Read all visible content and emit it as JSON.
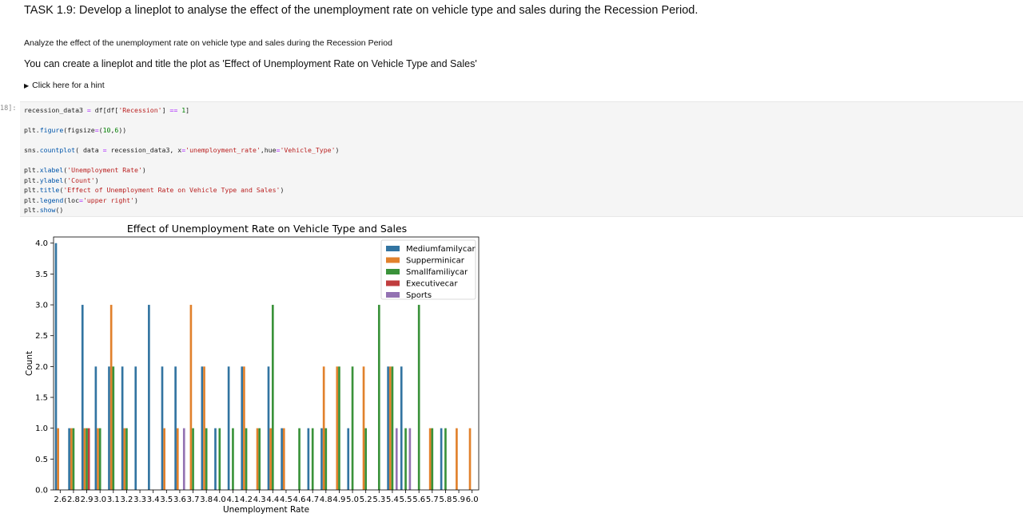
{
  "task_heading": "TASK 1.9: Develop a lineplot to analyse the effect of the unemployment rate on vehicle type and sales during the Recession Period.",
  "description": "Analyze the effect of the unemployment rate on vehicle type and sales during the Recession Period",
  "instruction": "You can create a lineplot and title the plot as 'Effect of Unemployment Rate on Vehicle Type and Sales'",
  "hint_label": "Click here for a hint",
  "prompt_label": "18]:",
  "code_lines": [
    "recession_data3 = df[df['Recession'] == 1]",
    "",
    "plt.figure(figsize=(10,6))",
    "",
    "sns.countplot( data = recession_data3, x='unemployment_rate',hue='Vehicle_Type')",
    "",
    "plt.xlabel('Unemployment Rate')",
    "plt.ylabel('Count')",
    "plt.title('Effect of Unemployment Rate on Vehicle Type and Sales')",
    "plt.legend(loc='upper right')",
    "plt.show()"
  ],
  "chart_data": {
    "type": "bar",
    "title": "Effect of Unemployment Rate on Vehicle Type and Sales",
    "xlabel": "Unemployment Rate",
    "ylabel": "Count",
    "ylim": [
      0,
      4.1
    ],
    "yticks": [
      "0.0",
      "0.5",
      "1.0",
      "1.5",
      "2.0",
      "2.5",
      "3.0",
      "3.5",
      "4.0"
    ],
    "legend_position": "upper right",
    "categories": [
      "2.6",
      "2.8",
      "2.9",
      "3.0",
      "3.1",
      "3.2",
      "3.3",
      "3.4",
      "3.5",
      "3.6",
      "3.7",
      "3.8",
      "4.0",
      "4.1",
      "4.2",
      "4.3",
      "4.4",
      "4.5",
      "4.6",
      "4.7",
      "4.8",
      "4.9",
      "5.0",
      "5.2",
      "5.3",
      "5.4",
      "5.5",
      "5.6",
      "5.7",
      "5.8",
      "5.9",
      "6.0"
    ],
    "series": [
      {
        "name": "Mediumfamilycar",
        "color": "#3274a1",
        "values": [
          4,
          1,
          3,
          2,
          2,
          2,
          2,
          3,
          2,
          2,
          0,
          2,
          1,
          2,
          2,
          0,
          2,
          1,
          0,
          1,
          1,
          0,
          1,
          0,
          0,
          2,
          2,
          0,
          0,
          1,
          0,
          0
        ]
      },
      {
        "name": "Supperminicar",
        "color": "#e1812c",
        "values": [
          1,
          1,
          1,
          1,
          3,
          1,
          0,
          0,
          1,
          1,
          3,
          2,
          0,
          0,
          2,
          1,
          1,
          1,
          0,
          0,
          2,
          2,
          0,
          2,
          0,
          2,
          0,
          0,
          1,
          0,
          1,
          1
        ]
      },
      {
        "name": "Smallfamiliycar",
        "color": "#3a923a",
        "values": [
          0,
          1,
          1,
          1,
          2,
          1,
          0,
          0,
          0,
          0,
          1,
          1,
          1,
          1,
          1,
          1,
          3,
          0,
          1,
          1,
          1,
          2,
          2,
          1,
          3,
          2,
          1,
          3,
          1,
          1,
          0,
          0
        ]
      },
      {
        "name": "Executivecar",
        "color": "#c03d3e",
        "values": [
          0,
          0,
          1,
          0,
          0,
          0,
          0,
          0,
          0,
          0,
          0,
          0,
          0,
          0,
          0,
          0,
          0,
          0,
          0,
          0,
          0,
          0,
          0,
          0,
          0,
          0,
          0,
          0,
          0,
          0,
          0,
          0
        ]
      },
      {
        "name": "Sports",
        "color": "#9372b2",
        "values": [
          0,
          0,
          0,
          0,
          0,
          0,
          0,
          0,
          0,
          1,
          0,
          0,
          0,
          0,
          0,
          0,
          0,
          0,
          0,
          0,
          0,
          0,
          0,
          0,
          0,
          1,
          1,
          0,
          0,
          0,
          0,
          0
        ]
      }
    ]
  }
}
